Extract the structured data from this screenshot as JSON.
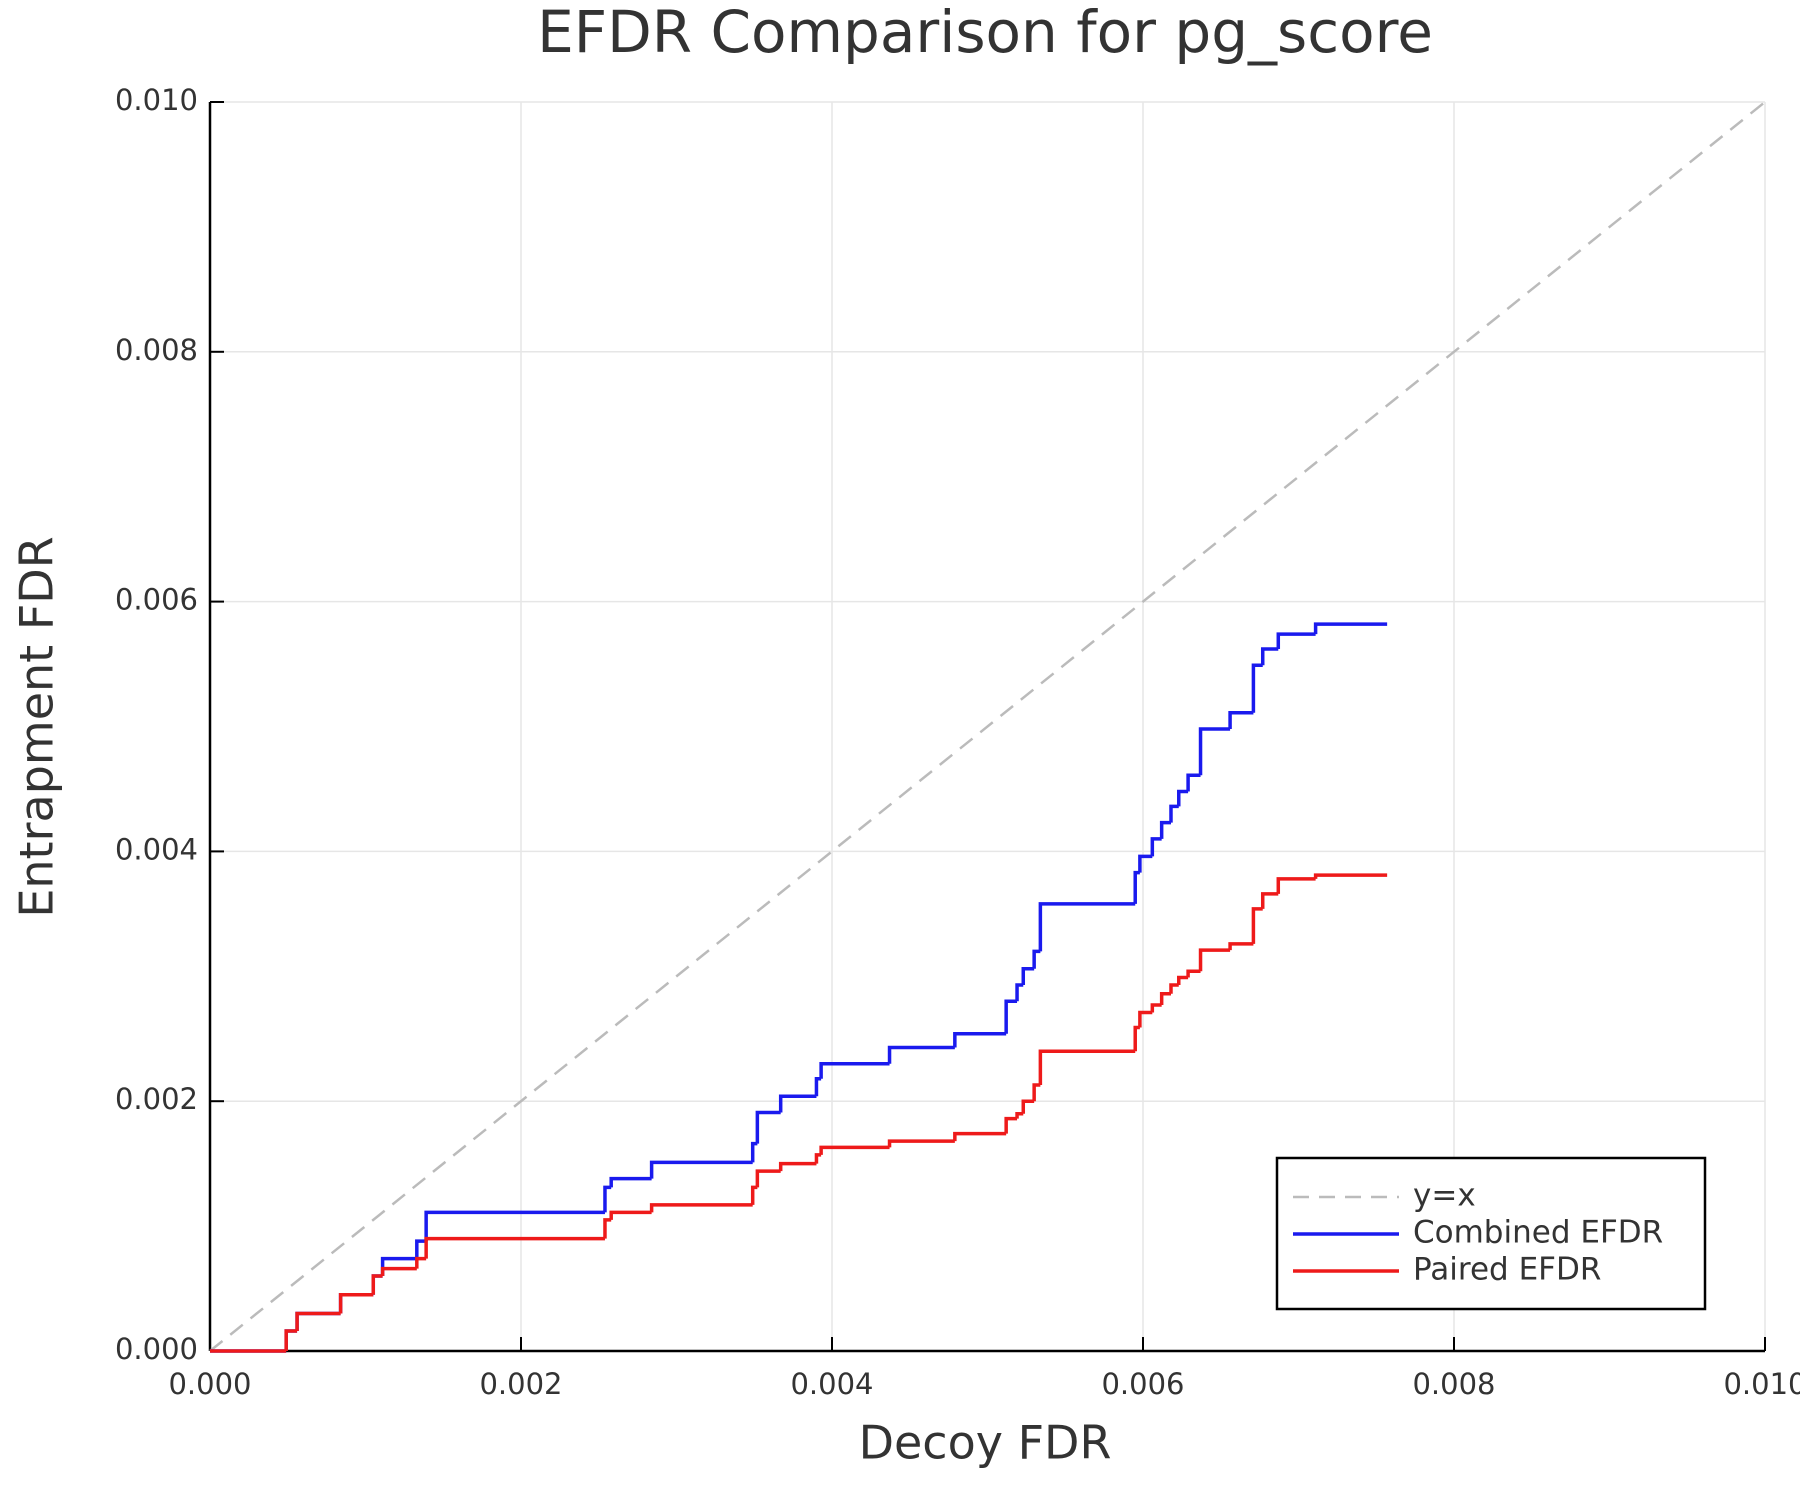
{
  "chart_data": {
    "type": "line",
    "title": "EFDR Comparison for pg_score",
    "xlabel": "Decoy FDR",
    "ylabel": "Entrapment FDR",
    "xlim": [
      0,
      0.01
    ],
    "ylim": [
      0,
      0.01
    ],
    "xticks": [
      {
        "value": 0,
        "label": "0.000"
      },
      {
        "value": 0.002,
        "label": "0.002"
      },
      {
        "value": 0.004,
        "label": "0.004"
      },
      {
        "value": 0.006,
        "label": "0.006"
      },
      {
        "value": 0.008,
        "label": "0.008"
      },
      {
        "value": 0.01,
        "label": "0.010"
      }
    ],
    "yticks": [
      {
        "value": 0,
        "label": "0.000"
      },
      {
        "value": 0.002,
        "label": "0.002"
      },
      {
        "value": 0.004,
        "label": "0.004"
      },
      {
        "value": 0.006,
        "label": "0.006"
      },
      {
        "value": 0.008,
        "label": "0.008"
      },
      {
        "value": 0.01,
        "label": "0.010"
      }
    ],
    "grid": true,
    "legend": "bottom right",
    "series": [
      {
        "name": "y=x",
        "color": "#bbbbbb",
        "dash": true,
        "step": false,
        "x": [
          0,
          0.01
        ],
        "values": [
          0,
          0.01
        ]
      },
      {
        "name": "Combined EFDR",
        "color": "#1a1aee",
        "dash": false,
        "step": true,
        "x": [
          0,
          0.00049,
          0.00056,
          0.00084,
          0.00105,
          0.00111,
          0.00133,
          0.00139,
          0.00254,
          0.00258,
          0.00284,
          0.00349,
          0.00352,
          0.00367,
          0.0039,
          0.00393,
          0.00437,
          0.00479,
          0.00512,
          0.00519,
          0.00523,
          0.0053,
          0.00534,
          0.00595,
          0.00598,
          0.00606,
          0.00612,
          0.00618,
          0.00623,
          0.00629,
          0.00637,
          0.00656,
          0.00671,
          0.00677,
          0.00687,
          0.00711,
          0.00757
        ],
        "values": [
          0,
          0.00016,
          0.0003,
          0.00045,
          0.0006,
          0.00074,
          0.00088,
          0.00111,
          0.00131,
          0.00138,
          0.00151,
          0.00166,
          0.00191,
          0.00204,
          0.00218,
          0.0023,
          0.00243,
          0.00254,
          0.0028,
          0.00293,
          0.00306,
          0.0032,
          0.00358,
          0.00383,
          0.00396,
          0.0041,
          0.00423,
          0.00436,
          0.00448,
          0.00461,
          0.00498,
          0.00511,
          0.00549,
          0.00562,
          0.00574,
          0.00582,
          0.00582
        ]
      },
      {
        "name": "Paired EFDR",
        "color": "#ee1a1a",
        "dash": false,
        "step": true,
        "x": [
          0,
          0.00049,
          0.00056,
          0.00084,
          0.00105,
          0.00111,
          0.00133,
          0.00139,
          0.00254,
          0.00258,
          0.00284,
          0.00349,
          0.00352,
          0.00367,
          0.0039,
          0.00393,
          0.00437,
          0.00479,
          0.00512,
          0.00519,
          0.00523,
          0.0053,
          0.00534,
          0.00595,
          0.00598,
          0.00606,
          0.00612,
          0.00618,
          0.00623,
          0.00629,
          0.00637,
          0.00656,
          0.00671,
          0.00677,
          0.00687,
          0.00711,
          0.00757
        ],
        "values": [
          0,
          0.00016,
          0.0003,
          0.00045,
          0.0006,
          0.00066,
          0.00074,
          0.0009,
          0.00105,
          0.00111,
          0.00117,
          0.00131,
          0.00144,
          0.0015,
          0.00157,
          0.00163,
          0.00168,
          0.00174,
          0.00186,
          0.0019,
          0.002,
          0.00213,
          0.0024,
          0.00259,
          0.00271,
          0.00277,
          0.00286,
          0.00293,
          0.00299,
          0.00304,
          0.00321,
          0.00326,
          0.00354,
          0.00366,
          0.00378,
          0.00381,
          0.00381
        ]
      }
    ]
  }
}
